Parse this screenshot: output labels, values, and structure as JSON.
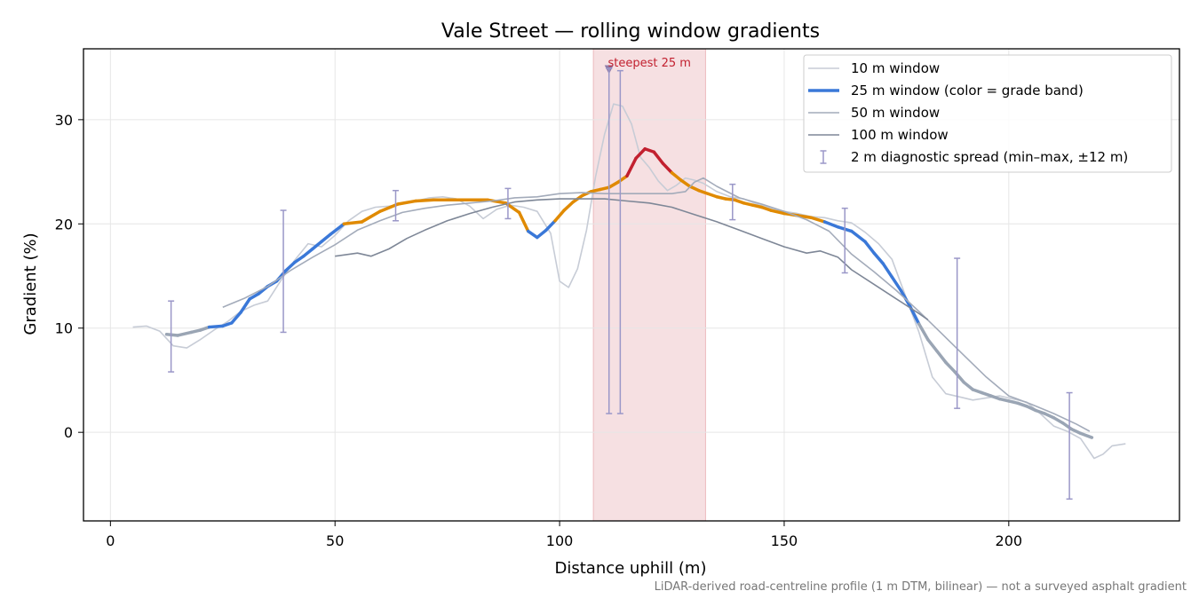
{
  "chart_data": {
    "type": "line",
    "title": "Vale Street — rolling window gradients",
    "xlabel": "Distance uphill (m)",
    "ylabel": "Gradient (%)",
    "xlim": [
      -6,
      238
    ],
    "ylim": [
      -8.5,
      36.8
    ],
    "xticks": [
      0,
      50,
      100,
      150,
      200
    ],
    "yticks": [
      0,
      10,
      20,
      30
    ],
    "grid": true,
    "legend_position": "top-right",
    "footnote": "LiDAR-derived road-centreline profile (1 m DTM, bilinear) — not a surveyed asphalt gradient",
    "highlight": {
      "x0": 107.5,
      "x1": 132.5,
      "label": "steepest 25 m",
      "marker": [
        111,
        34.8
      ],
      "color": "#c2202f"
    },
    "grade_band_colors": {
      "below_10": "#9aa5b4",
      "10_to_20": "#3a78d8",
      "20_to_25": "#e08a00",
      "above_25": "#c2202f"
    },
    "series": [
      {
        "name": "10 m window",
        "color": "#c7ccd6",
        "width": 1.6,
        "x": [
          5,
          8,
          11,
          14,
          17,
          20,
          23,
          26,
          29,
          32,
          35,
          38,
          41,
          44,
          47,
          50,
          53,
          56,
          59,
          62,
          65,
          68,
          71,
          74,
          77,
          80,
          83,
          86,
          89,
          92,
          95,
          98,
          100,
          102,
          104,
          106,
          108,
          110,
          112,
          114,
          116,
          118,
          120,
          122,
          124,
          126,
          128,
          130,
          132,
          135,
          138,
          141,
          144,
          147,
          150,
          153,
          156,
          159,
          162,
          165,
          168,
          171,
          174,
          177,
          180,
          183,
          186,
          189,
          192,
          195,
          198,
          201,
          204,
          207,
          210,
          213,
          216,
          219,
          221,
          223,
          226
        ],
        "y": [
          10.1,
          10.2,
          9.7,
          8.3,
          8.1,
          8.9,
          9.8,
          10.6,
          11.6,
          12.2,
          12.6,
          14.6,
          16.5,
          18.1,
          17.8,
          18.9,
          20.3,
          21.2,
          21.6,
          21.7,
          21.9,
          22.2,
          22.5,
          22.6,
          22.4,
          21.7,
          20.5,
          21.4,
          21.8,
          21.6,
          21.2,
          19.1,
          14.5,
          13.9,
          15.7,
          19.4,
          24.5,
          28.6,
          31.5,
          31.3,
          29.6,
          26.4,
          25.4,
          24.1,
          23.2,
          23.7,
          24.4,
          24.2,
          23.9,
          23.1,
          22.6,
          22.4,
          21.9,
          21.5,
          21.2,
          21.0,
          20.7,
          20.6,
          20.3,
          20.1,
          19.2,
          18.1,
          16.6,
          13.1,
          9.6,
          5.3,
          3.7,
          3.4,
          3.1,
          3.3,
          3.5,
          3.2,
          2.9,
          1.8,
          0.6,
          0.1,
          -0.6,
          -2.5,
          -2.1,
          -1.3,
          -1.1
        ]
      },
      {
        "name": "25 m window (color = grade band)",
        "color": "#3a78d8",
        "width": 3.5,
        "colored_by_grade": true,
        "x": [
          12.5,
          15,
          18,
          20,
          22,
          25,
          27,
          29,
          31,
          33,
          35,
          37,
          39,
          41,
          43,
          45,
          47,
          49,
          52,
          56,
          60,
          64,
          68,
          72,
          76,
          80,
          84,
          88,
          91,
          93,
          95,
          97,
          99,
          101,
          103,
          105,
          107,
          109,
          111,
          113,
          115,
          117,
          119,
          121,
          123,
          125,
          127,
          129,
          131,
          133,
          135,
          137,
          139,
          141,
          143,
          145,
          147,
          150,
          153,
          156,
          159,
          162,
          165,
          168,
          170,
          172,
          174,
          176,
          178,
          180,
          182,
          184,
          186,
          188,
          190,
          192,
          194,
          196,
          198,
          200,
          202,
          204,
          206,
          208,
          210,
          212,
          214,
          216,
          218.5
        ],
        "y": [
          9.4,
          9.3,
          9.6,
          9.8,
          10.1,
          10.2,
          10.5,
          11.5,
          12.8,
          13.3,
          14.0,
          14.5,
          15.5,
          16.3,
          16.9,
          17.6,
          18.3,
          19.0,
          20.0,
          20.2,
          21.2,
          21.9,
          22.2,
          22.3,
          22.3,
          22.3,
          22.3,
          22.0,
          21.1,
          19.3,
          18.7,
          19.4,
          20.3,
          21.3,
          22.1,
          22.7,
          23.1,
          23.3,
          23.5,
          24.0,
          24.6,
          26.3,
          27.2,
          26.9,
          25.8,
          24.9,
          24.2,
          23.6,
          23.2,
          22.9,
          22.6,
          22.4,
          22.3,
          22.0,
          21.8,
          21.6,
          21.3,
          21.0,
          20.8,
          20.6,
          20.2,
          19.7,
          19.3,
          18.3,
          17.2,
          16.2,
          14.9,
          13.6,
          12.1,
          10.4,
          8.9,
          7.8,
          6.7,
          5.8,
          4.8,
          4.1,
          3.8,
          3.5,
          3.2,
          3.0,
          2.8,
          2.5,
          2.1,
          1.8,
          1.4,
          0.9,
          0.3,
          -0.1,
          -0.5
        ]
      },
      {
        "name": "50 m window",
        "color": "#a3abba",
        "width": 1.6,
        "x": [
          25,
          30,
          35,
          40,
          45,
          50,
          55,
          60,
          65,
          70,
          75,
          80,
          85,
          90,
          95,
          100,
          105,
          110,
          115,
          120,
          125,
          128,
          130,
          132,
          135,
          140,
          145,
          150,
          155,
          160,
          165,
          170,
          175,
          180,
          185,
          190,
          195,
          200,
          205,
          210,
          215,
          218
        ],
        "y": [
          12.0,
          12.9,
          14.0,
          15.5,
          16.8,
          18.0,
          19.4,
          20.3,
          21.1,
          21.5,
          21.8,
          22.0,
          22.2,
          22.5,
          22.6,
          22.9,
          23.0,
          22.9,
          22.9,
          22.9,
          22.9,
          23.1,
          24.0,
          24.4,
          23.6,
          22.5,
          21.9,
          21.2,
          20.4,
          19.3,
          17.1,
          15.4,
          13.6,
          11.6,
          9.5,
          7.4,
          5.3,
          3.5,
          2.7,
          1.8,
          0.8,
          0.1
        ]
      },
      {
        "name": "100 m window",
        "color": "#7e8797",
        "width": 1.6,
        "x": [
          50,
          55,
          58,
          62,
          66,
          70,
          75,
          80,
          85,
          90,
          95,
          100,
          105,
          110,
          115,
          120,
          125,
          130,
          135,
          140,
          145,
          150,
          155,
          158,
          162,
          165,
          170,
          175,
          180,
          182
        ],
        "y": [
          16.9,
          17.2,
          16.9,
          17.6,
          18.6,
          19.4,
          20.3,
          21.0,
          21.6,
          22.1,
          22.3,
          22.4,
          22.4,
          22.4,
          22.2,
          22.0,
          21.6,
          20.9,
          20.2,
          19.4,
          18.6,
          17.8,
          17.2,
          17.4,
          16.8,
          15.6,
          14.2,
          12.8,
          11.4,
          10.8
        ]
      }
    ],
    "error_bars": {
      "name": "2 m diagnostic spread (min–max, ±12 m)",
      "color": "#9a97c8",
      "points": [
        {
          "x": 13.5,
          "lo": 5.8,
          "hi": 12.6
        },
        {
          "x": 38.5,
          "lo": 9.6,
          "hi": 21.3
        },
        {
          "x": 63.5,
          "lo": 20.3,
          "hi": 23.2
        },
        {
          "x": 88.5,
          "lo": 20.5,
          "hi": 23.4
        },
        {
          "x": 111,
          "lo": 1.8,
          "hi": 34.9
        },
        {
          "x": 113.5,
          "lo": 1.8,
          "hi": 34.7
        },
        {
          "x": 138.5,
          "lo": 20.4,
          "hi": 23.8
        },
        {
          "x": 163.5,
          "lo": 15.3,
          "hi": 21.5
        },
        {
          "x": 188.5,
          "lo": 2.3,
          "hi": 16.7
        },
        {
          "x": 213.5,
          "lo": -6.4,
          "hi": 3.8
        }
      ]
    }
  }
}
